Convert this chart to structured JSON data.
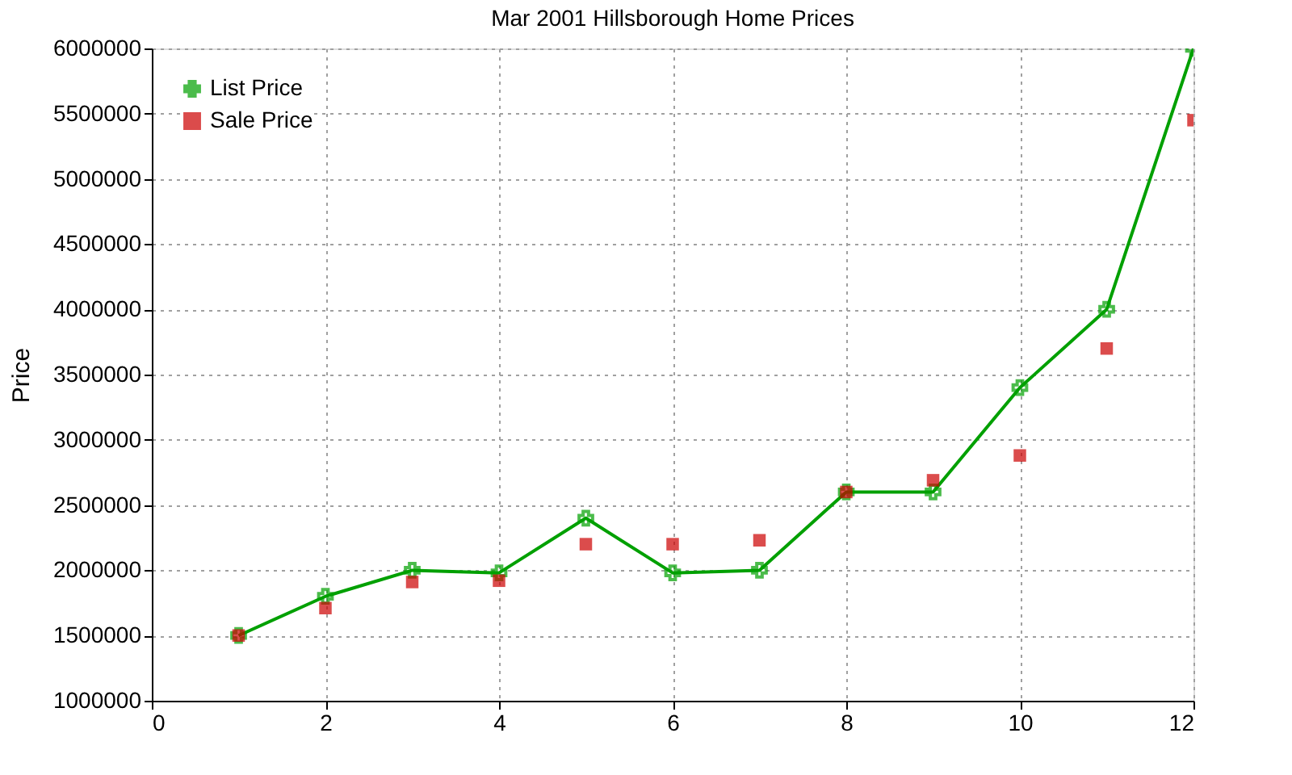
{
  "chart_data": {
    "type": "line",
    "title": "Mar 2001 Hillsborough Home Prices",
    "ylabel": "Price",
    "x": [
      1,
      2,
      3,
      4,
      5,
      6,
      7,
      8,
      9,
      10,
      11,
      12
    ],
    "series": [
      {
        "name": "List Price",
        "type": "line",
        "color": "#00a000",
        "marker": "cross",
        "values": [
          1500000,
          1800000,
          2000000,
          1980000,
          2400000,
          1980000,
          2000000,
          2600000,
          2600000,
          3400000,
          4000000,
          6000000
        ]
      },
      {
        "name": "Sale Price",
        "type": "scatter",
        "color": "#cc0000",
        "marker": "square",
        "values": [
          1500000,
          1710000,
          1910000,
          1920000,
          2200000,
          2200000,
          2230000,
          2600000,
          2690000,
          2880000,
          3700000,
          5450000
        ]
      }
    ],
    "xlim": [
      0,
      12
    ],
    "xticks": [
      0,
      2,
      4,
      6,
      8,
      10,
      12
    ],
    "ylim": [
      1000000,
      6000000
    ],
    "yticks": [
      1000000,
      1500000,
      2000000,
      2500000,
      3000000,
      3500000,
      4000000,
      4500000,
      5000000,
      5500000,
      6000000
    ],
    "grid": true,
    "legend": "top left"
  }
}
